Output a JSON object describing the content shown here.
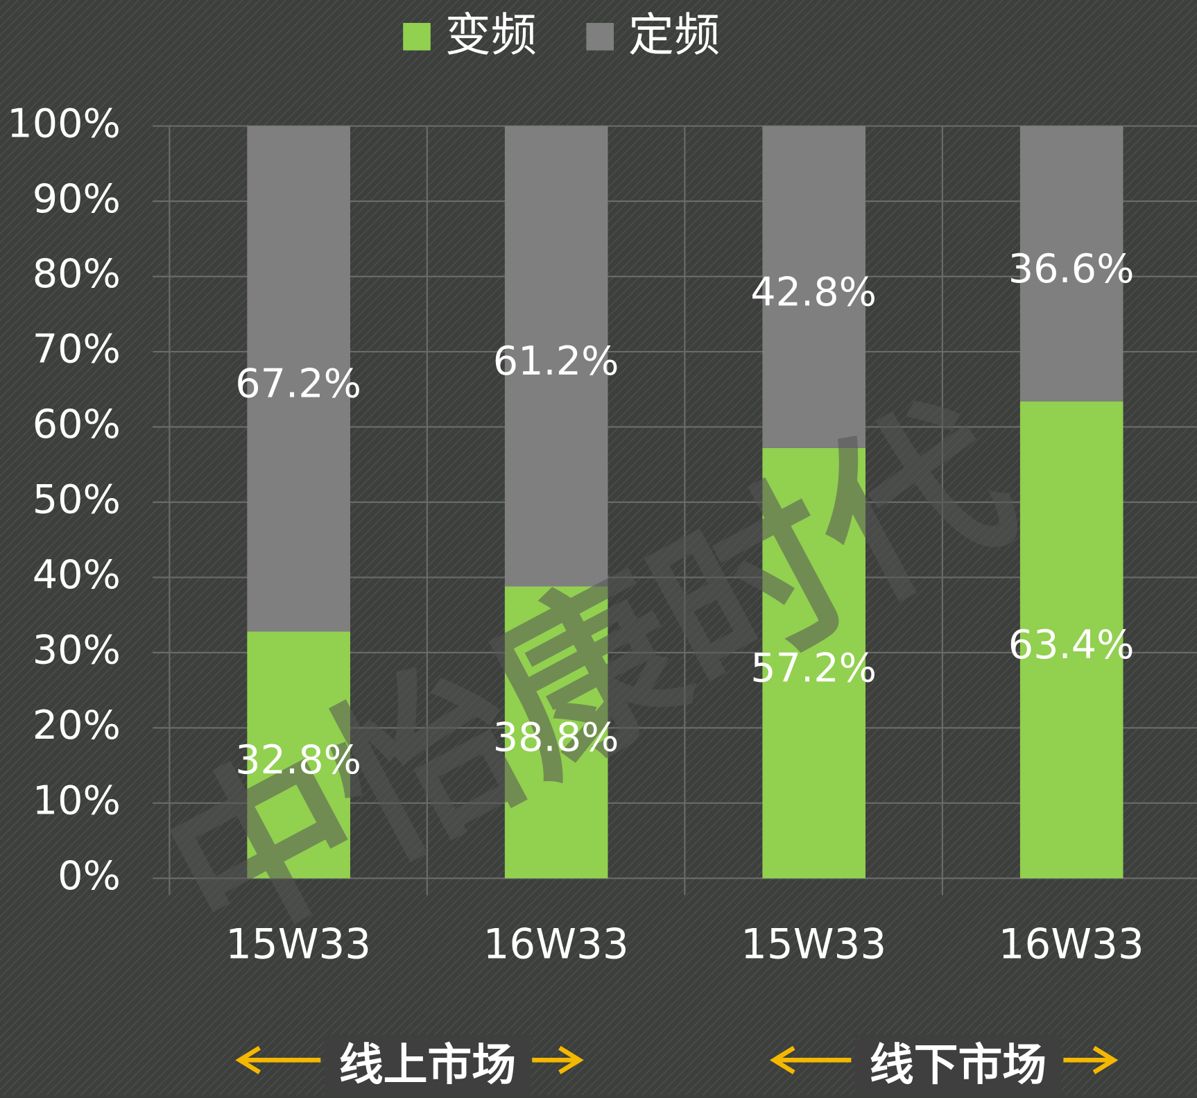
{
  "chart_data": {
    "type": "stacked_bar",
    "categories": [
      "15W33",
      "16W33",
      "15W33",
      "16W33"
    ],
    "series": [
      {
        "name": "变频",
        "color": "#92d050",
        "values": [
          32.8,
          38.8,
          57.2,
          63.4
        ],
        "value_labels": [
          "32.8%",
          "38.8%",
          "57.2%",
          "63.4%"
        ]
      },
      {
        "name": "定频",
        "color": "#7f7f7f",
        "values": [
          67.2,
          61.2,
          42.8,
          36.6
        ],
        "value_labels": [
          "67.2%",
          "61.2%",
          "42.8%",
          "36.6%"
        ]
      }
    ],
    "ylim": [
      0,
      100
    ],
    "yticks": [
      {
        "value": 0,
        "label": "0%"
      },
      {
        "value": 10,
        "label": "10%"
      },
      {
        "value": 20,
        "label": "20%"
      },
      {
        "value": 30,
        "label": "30%"
      },
      {
        "value": 40,
        "label": "40%"
      },
      {
        "value": 50,
        "label": "50%"
      },
      {
        "value": 60,
        "label": "60%"
      },
      {
        "value": 70,
        "label": "70%"
      },
      {
        "value": 80,
        "label": "80%"
      },
      {
        "value": 90,
        "label": "90%"
      },
      {
        "value": 100,
        "label": "100%"
      }
    ],
    "grid": true,
    "legend": "top",
    "groups": [
      "线上市场",
      "线下市场"
    ],
    "watermark": "中怡康时代"
  }
}
